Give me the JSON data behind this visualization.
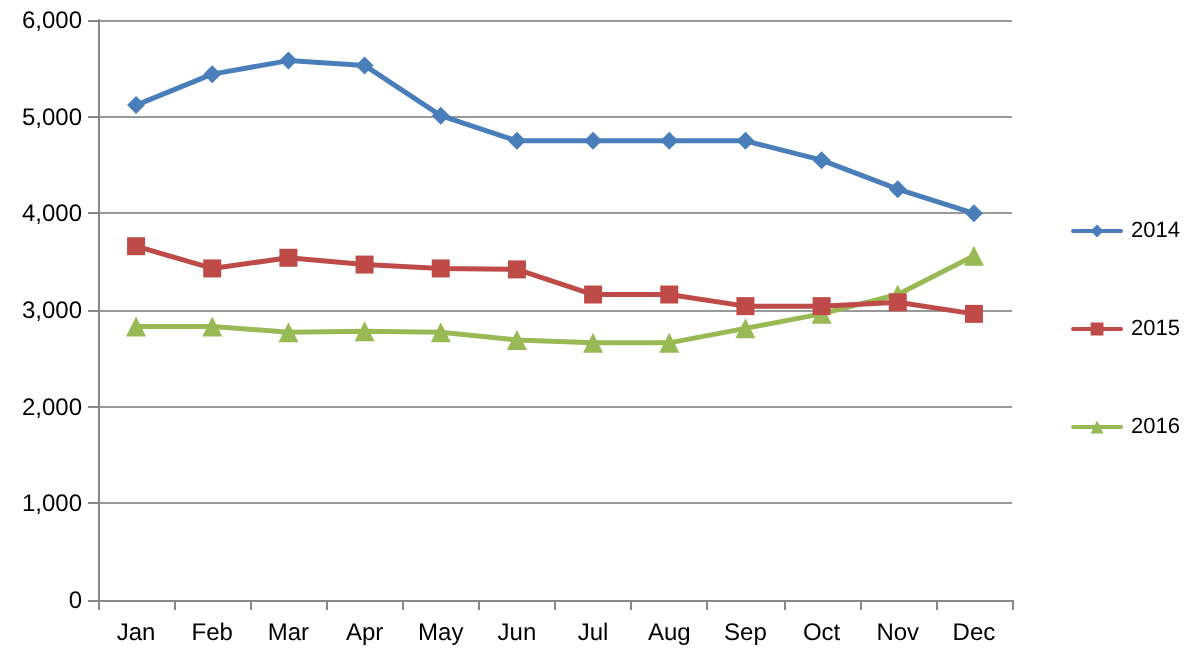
{
  "chart_data": {
    "type": "line",
    "categories": [
      "Jan",
      "Feb",
      "Mar",
      "Apr",
      "May",
      "Jun",
      "Jul",
      "Aug",
      "Sep",
      "Oct",
      "Nov",
      "Dec"
    ],
    "series": [
      {
        "name": "2014",
        "color": "#4a7ebb",
        "marker": "diamond",
        "values": [
          5120,
          5440,
          5580,
          5530,
          5010,
          4750,
          4750,
          4750,
          4750,
          4550,
          4250,
          4000
        ]
      },
      {
        "name": "2015",
        "color": "#be4b48",
        "marker": "square",
        "values": [
          3660,
          3430,
          3540,
          3470,
          3430,
          3420,
          3160,
          3160,
          3040,
          3040,
          3080,
          2960
        ]
      },
      {
        "name": "2016",
        "color": "#98b954",
        "marker": "triangle",
        "values": [
          2830,
          2830,
          2770,
          2780,
          2770,
          2690,
          2660,
          2660,
          2810,
          2960,
          3160,
          3560
        ]
      }
    ],
    "ylim": [
      0,
      6000
    ],
    "yticks": [
      0,
      {
        "value": 1000,
        "label": "1,000"
      },
      {
        "value": 2000,
        "label": "2,000"
      },
      {
        "value": 3000,
        "label": "3,000"
      },
      {
        "value": 4000,
        "label": "4,000"
      },
      {
        "value": 5000,
        "label": "5,000"
      },
      {
        "value": 6000,
        "label": "6,000"
      }
    ],
    "grid": "y",
    "legend": "right",
    "line_style": "solid"
  }
}
